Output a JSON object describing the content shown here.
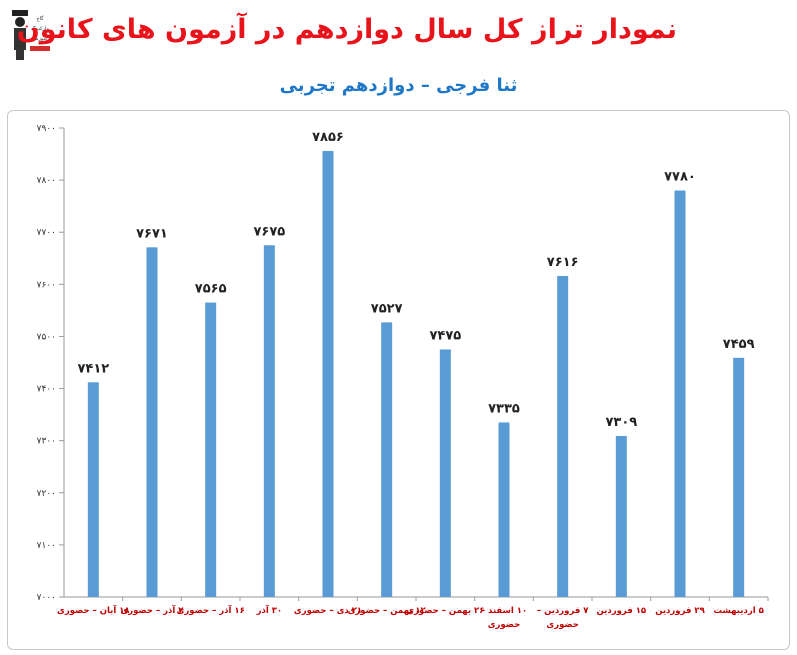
{
  "header": {
    "title": "نمودار تراز کل سال دوازدهم در آزمون های کانون",
    "subtitle": "ثنا فرجی – دوازدهم تجربی",
    "logo_text": [
      "گاج",
      "مارکتینگ",
      "آموزش"
    ]
  },
  "colors": {
    "title": "#e8131b",
    "subtitle": "#1f77c8",
    "bar": "#5b9bd5",
    "category_label": "#c00000"
  },
  "chart_data": {
    "type": "bar",
    "title": "",
    "xlabel": "",
    "ylabel": "",
    "ylim": [
      7000,
      7900
    ],
    "yticks": [
      "۷۰۰۰",
      "۷۱۰۰",
      "۷۲۰۰",
      "۷۳۰۰",
      "۷۴۰۰",
      "۷۵۰۰",
      "۷۶۰۰",
      "۷۷۰۰",
      "۷۸۰۰",
      "۷۹۰۰"
    ],
    "grid": false,
    "categories": [
      "۱۸ آبان – حضوری",
      "۲ آذر – حضوری",
      "۱۶ آذر – حضوری",
      "۳۰ آذر",
      "۲۱ دی – حضوری",
      "۱۲ بهمن – حضوری",
      "۲۶ بهمن – حضوری",
      "۱۰ اسفند – حضوری",
      "۷ فروردین – حضوری",
      "۱۵ فروردین",
      "۲۹ فروردین",
      "۵ اردیبهشت"
    ],
    "values": [
      7412,
      7671,
      7565,
      7675,
      7856,
      7527,
      7475,
      7335,
      7616,
      7309,
      7780,
      7459
    ],
    "value_labels": [
      "۷۴۱۲",
      "۷۶۷۱",
      "۷۵۶۵",
      "۷۶۷۵",
      "۷۸۵۶",
      "۷۵۲۷",
      "۷۴۷۵",
      "۷۳۳۵",
      "۷۶۱۶",
      "۷۳۰۹",
      "۷۷۸۰",
      "۷۴۵۹"
    ]
  }
}
